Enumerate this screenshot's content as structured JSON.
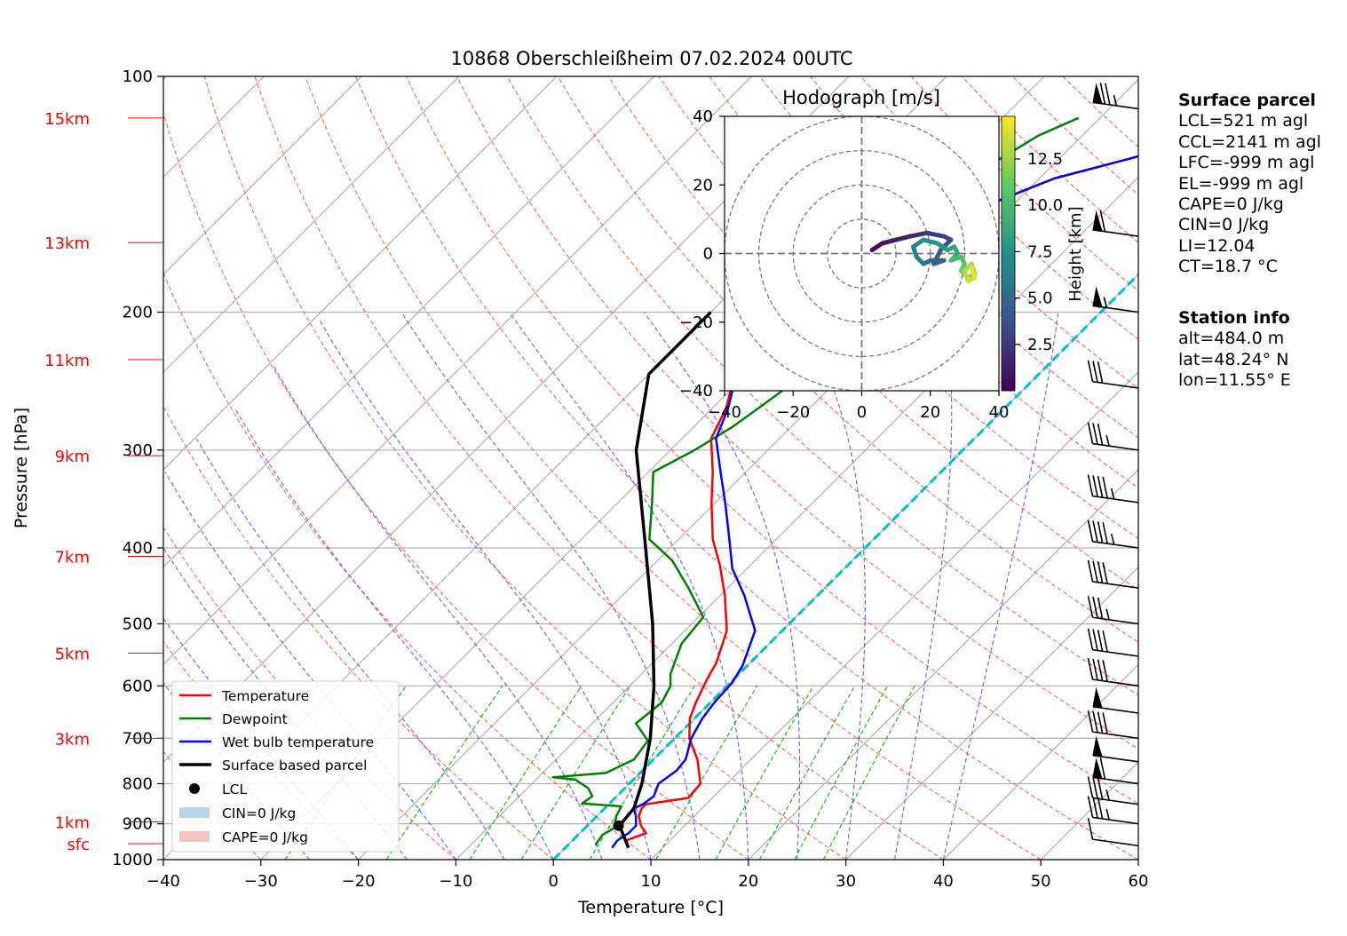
{
  "chart_data": {
    "type": "line",
    "title": "10868 Oberschleißheim 07.02.2024 00UTC",
    "xlabel": "Temperature [°C]",
    "ylabel": "Pressure [hPa]",
    "xlim": [
      -40,
      60
    ],
    "ylim": [
      1000,
      100
    ],
    "y_scale": "log",
    "x_ticks": [
      "−40",
      "−30",
      "−20",
      "−10",
      "0",
      "10",
      "20",
      "30",
      "40",
      "50",
      "60"
    ],
    "y_ticks": [
      "100",
      "200",
      "300",
      "400",
      "500",
      "600",
      "700",
      "800",
      "900",
      "1000"
    ],
    "height_labels": [
      {
        "p": 113,
        "text": "15km"
      },
      {
        "p": 163,
        "text": "13km"
      },
      {
        "p": 230,
        "text": "11km"
      },
      {
        "p": 305,
        "text": "9km"
      },
      {
        "p": 410,
        "text": "7km"
      },
      {
        "p": 545,
        "text": "5km"
      },
      {
        "p": 700,
        "text": "3km"
      },
      {
        "p": 895,
        "text": "1km"
      },
      {
        "p": 954,
        "text": "sfc"
      }
    ],
    "legend": {
      "position": "lower-left",
      "entries": [
        "Temperature",
        "Dewpoint",
        "Wet bulb temperature",
        "Surface based parcel",
        "LCL",
        "CIN=0 J/kg",
        "CAPE=0 J/kg"
      ]
    },
    "colors": {
      "temperature": "#ff0000",
      "dewpoint": "#008000",
      "wetbulb": "#0000ff",
      "parcel": "#000000",
      "dry_adiabat": "#ff5050",
      "moist_adiabat": "#5050ff",
      "mixing_ratio": "#00a000",
      "freezing": "#00bfbf",
      "isotherm": "#9a9a9a",
      "cin": "#b8d4e8",
      "cape": "#f4c4c4"
    },
    "series": [
      {
        "name": "Temperature",
        "points": [
          [
            6.5,
            966
          ],
          [
            5.5,
            945
          ],
          [
            6.8,
            925
          ],
          [
            5.5,
            905
          ],
          [
            4.3,
            880
          ],
          [
            3.8,
            860
          ],
          [
            3.8,
            850
          ],
          [
            7.5,
            834
          ],
          [
            7.3,
            800
          ],
          [
            5.8,
            770
          ],
          [
            4.5,
            745
          ],
          [
            1.5,
            700
          ],
          [
            -0.5,
            660
          ],
          [
            -1.5,
            630
          ],
          [
            -2.7,
            590
          ],
          [
            -3.5,
            560
          ],
          [
            -5.7,
            510
          ],
          [
            -9.5,
            460
          ],
          [
            -13.2,
            420
          ],
          [
            -16.5,
            390
          ],
          [
            -20.4,
            350
          ],
          [
            -23.4,
            320
          ],
          [
            -27.0,
            290
          ],
          [
            -28.6,
            265
          ],
          [
            -31.2,
            240
          ],
          [
            -33.0,
            215
          ],
          [
            -34.0,
            200
          ],
          [
            -33.0,
            190
          ],
          [
            -30.5,
            180
          ],
          [
            -27.5,
            165
          ],
          [
            -24.0,
            150
          ],
          [
            -18.5,
            135
          ],
          [
            -12.5,
            127
          ],
          [
            -8.0,
            120
          ],
          [
            -4.2,
            112
          ],
          [
            1.0,
            108
          ]
        ]
      },
      {
        "name": "Dewpoint",
        "points": [
          [
            2.8,
            958
          ],
          [
            2.5,
            930
          ],
          [
            3.0,
            912
          ],
          [
            2.0,
            880
          ],
          [
            1.5,
            855
          ],
          [
            -2.8,
            848
          ],
          [
            -2.5,
            830
          ],
          [
            -3.8,
            810
          ],
          [
            -6.0,
            790
          ],
          [
            -8.5,
            785
          ],
          [
            -3.5,
            775
          ],
          [
            -2.0,
            745
          ],
          [
            -2.5,
            705
          ],
          [
            -5.5,
            670
          ],
          [
            -5.0,
            630
          ],
          [
            -5.8,
            600
          ],
          [
            -7.0,
            580
          ],
          [
            -9.0,
            530
          ],
          [
            -9.5,
            490
          ],
          [
            -14.0,
            450
          ],
          [
            -18.5,
            415
          ],
          [
            -23.0,
            390
          ],
          [
            -26.5,
            350
          ],
          [
            -29.5,
            320
          ],
          [
            -27.5,
            300
          ],
          [
            -26.0,
            280
          ],
          [
            -25.0,
            260
          ],
          [
            -24.0,
            240
          ],
          [
            -27.0,
            215
          ],
          [
            -27.5,
            195
          ],
          [
            -28.0,
            180
          ],
          [
            -29.5,
            165
          ],
          [
            -28.0,
            155
          ],
          [
            -28.0,
            142
          ],
          [
            -26.5,
            130
          ],
          [
            -24.5,
            119
          ],
          [
            -22.2,
            113
          ]
        ]
      },
      {
        "name": "Wet bulb temperature",
        "points": [
          [
            4.8,
            966
          ],
          [
            4.6,
            945
          ],
          [
            5.0,
            925
          ],
          [
            5.0,
            905
          ],
          [
            4.0,
            880
          ],
          [
            3.0,
            860
          ],
          [
            3.5,
            850
          ],
          [
            3.8,
            830
          ],
          [
            3.0,
            800
          ],
          [
            3.5,
            770
          ],
          [
            3.3,
            745
          ],
          [
            1.7,
            700
          ],
          [
            0.8,
            660
          ],
          [
            0.4,
            630
          ],
          [
            0.2,
            595
          ],
          [
            -0.5,
            565
          ],
          [
            -2.8,
            510
          ],
          [
            -7.5,
            460
          ],
          [
            -11.5,
            425
          ],
          [
            -14.8,
            390
          ],
          [
            -19.0,
            350
          ],
          [
            -22.6,
            320
          ],
          [
            -26.5,
            290
          ],
          [
            -28.4,
            265
          ],
          [
            -31.0,
            240
          ],
          [
            -33.2,
            215
          ],
          [
            -34.0,
            200
          ],
          [
            -33.0,
            190
          ],
          [
            -30.5,
            180
          ],
          [
            -27.5,
            165
          ],
          [
            -24.0,
            150
          ],
          [
            -18.5,
            135
          ],
          [
            -12.5,
            127
          ],
          [
            -8.0,
            120
          ],
          [
            -4.2,
            112
          ],
          [
            0.8,
            108
          ]
        ]
      },
      {
        "name": "Surface based parcel",
        "points": [
          [
            6.5,
            966
          ],
          [
            3.3,
            905
          ],
          [
            3.0,
            860
          ],
          [
            1.3,
            800
          ],
          [
            -2.5,
            700
          ],
          [
            -7.5,
            600
          ],
          [
            -14.0,
            500
          ],
          [
            -22.5,
            400
          ],
          [
            -33.5,
            300
          ],
          [
            -40,
            240
          ],
          [
            -40,
            200
          ]
        ]
      }
    ],
    "lcl": {
      "t": 3.2,
      "p": 905
    },
    "freezing_line": {
      "t0": 0,
      "label": "0 °C isotherm"
    },
    "wind_barbs": [
      {
        "p": 110,
        "speed_kt": 75
      },
      {
        "p": 160,
        "speed_kt": 60
      },
      {
        "p": 200,
        "speed_kt": 55
      },
      {
        "p": 250,
        "speed_kt": 30
      },
      {
        "p": 300,
        "speed_kt": 35
      },
      {
        "p": 350,
        "speed_kt": 45
      },
      {
        "p": 400,
        "speed_kt": 45
      },
      {
        "p": 450,
        "speed_kt": 40
      },
      {
        "p": 500,
        "speed_kt": 35
      },
      {
        "p": 550,
        "speed_kt": 40
      },
      {
        "p": 600,
        "speed_kt": 40
      },
      {
        "p": 650,
        "speed_kt": 50
      },
      {
        "p": 700,
        "speed_kt": 40
      },
      {
        "p": 750,
        "speed_kt": 50
      },
      {
        "p": 800,
        "speed_kt": 60
      },
      {
        "p": 850,
        "speed_kt": 35
      },
      {
        "p": 900,
        "speed_kt": 35
      },
      {
        "p": 960,
        "speed_kt": 10
      }
    ],
    "hodograph": {
      "title": "Hodograph [m/s]",
      "xlim": [
        -40,
        40
      ],
      "ylim": [
        -40,
        40
      ],
      "x_ticks": [
        "−40",
        "−20",
        "0",
        "20",
        "40"
      ],
      "y_ticks": [
        "40",
        "20",
        "0",
        "−20",
        "−40"
      ],
      "colorbar_label": "Height [km]",
      "colorbar_ticks": [
        "2.5",
        "5.0",
        "7.5",
        "10.0",
        "12.5"
      ],
      "points": [
        {
          "u": 3,
          "v": 1,
          "h": 0.5
        },
        {
          "u": 6,
          "v": 3,
          "h": 1.0
        },
        {
          "u": 10,
          "v": 4,
          "h": 1.5
        },
        {
          "u": 14,
          "v": 5,
          "h": 2.0
        },
        {
          "u": 19,
          "v": 6,
          "h": 2.5
        },
        {
          "u": 24,
          "v": 5,
          "h": 3.0
        },
        {
          "u": 26,
          "v": 4,
          "h": 3.5
        },
        {
          "u": 23,
          "v": 1,
          "h": 4.0
        },
        {
          "u": 21,
          "v": -3,
          "h": 4.5
        },
        {
          "u": 24,
          "v": -2,
          "h": 5.0
        },
        {
          "u": 20,
          "v": -2,
          "h": 5.5
        },
        {
          "u": 18,
          "v": -3,
          "h": 6.0
        },
        {
          "u": 16,
          "v": -1,
          "h": 6.5
        },
        {
          "u": 15,
          "v": 2,
          "h": 7.0
        },
        {
          "u": 18,
          "v": 4,
          "h": 7.5
        },
        {
          "u": 22,
          "v": 3,
          "h": 8.0
        },
        {
          "u": 25,
          "v": 1,
          "h": 8.5
        },
        {
          "u": 27,
          "v": 2,
          "h": 9.0
        },
        {
          "u": 28,
          "v": 0,
          "h": 9.5
        },
        {
          "u": 26,
          "v": -2,
          "h": 10.0
        },
        {
          "u": 29,
          "v": -1,
          "h": 10.5
        },
        {
          "u": 30,
          "v": -3,
          "h": 11.0
        },
        {
          "u": 29,
          "v": -5,
          "h": 11.5
        },
        {
          "u": 31,
          "v": -7,
          "h": 12.0
        },
        {
          "u": 33,
          "v": -6,
          "h": 12.5
        },
        {
          "u": 32,
          "v": -3,
          "h": 13.0
        },
        {
          "u": 30,
          "v": -5,
          "h": 13.5
        },
        {
          "u": 31,
          "v": -8,
          "h": 14.0
        },
        {
          "u": 33,
          "v": -7,
          "h": 14.5
        },
        {
          "u": 32,
          "v": -4,
          "h": 15.0
        }
      ]
    }
  },
  "surface_parcel": {
    "heading": "Surface parcel",
    "lines": [
      "LCL=521 m agl",
      "CCL=2141 m agl",
      "LFC=-999 m agl",
      "EL=-999 m agl",
      "CAPE=0 J/kg",
      "CIN=0 J/kg",
      "LI=12.04",
      "CT=18.7 °C"
    ]
  },
  "station_info": {
    "heading": "Station info",
    "lines": [
      "alt=484.0 m",
      "lat=48.24° N",
      "lon=11.55° E"
    ]
  }
}
